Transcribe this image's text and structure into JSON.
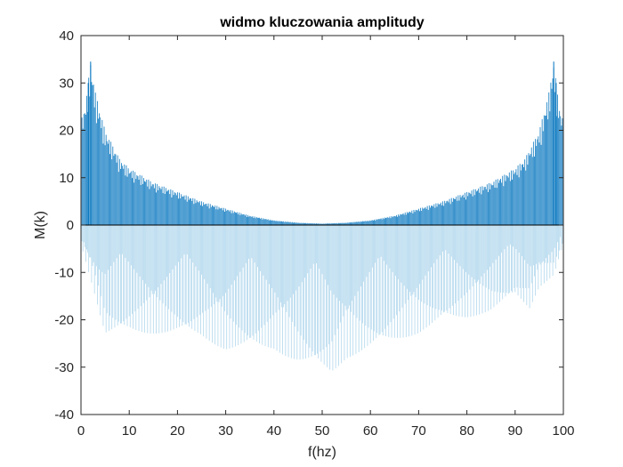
{
  "chart_data": {
    "type": "bar",
    "title": "widmo kluczowania amplitudy",
    "xlabel": "f(hz)",
    "ylabel": "M(k)",
    "xlim": [
      0,
      100
    ],
    "ylim": [
      -40,
      40
    ],
    "xticks": [
      0,
      10,
      20,
      30,
      40,
      50,
      60,
      70,
      80,
      90,
      100
    ],
    "yticks": [
      40,
      30,
      20,
      10,
      0,
      -10,
      -20,
      -30,
      -40
    ],
    "grid": false,
    "legend": "none",
    "series": [
      {
        "style": "stem",
        "envelope_positive": {
          "x": [
            0,
            1,
            2,
            3,
            5,
            8,
            10,
            15,
            20,
            25,
            30,
            35,
            40,
            45,
            50,
            55,
            60,
            65,
            70,
            75,
            80,
            85,
            90,
            92,
            95,
            97,
            98,
            99,
            100
          ],
          "y": [
            22,
            26,
            34.5,
            28,
            20,
            14,
            12,
            9,
            7,
            5,
            3.5,
            2,
            1,
            0.5,
            0.3,
            0.5,
            1,
            2,
            3.5,
            5,
            7,
            9,
            12,
            14,
            20,
            28,
            34.5,
            26,
            22
          ]
        },
        "envelope_negative": {
          "x": [
            0,
            2,
            5,
            10,
            15,
            20,
            25,
            30,
            35,
            40,
            45,
            50,
            52,
            55,
            60,
            65,
            70,
            75,
            80,
            85,
            90,
            93,
            95,
            98,
            100
          ],
          "y": [
            -6,
            -16,
            -32,
            -30,
            -29,
            -28,
            -28,
            -30,
            -29,
            -28,
            -30,
            -31,
            -32,
            -29,
            -28,
            -27,
            -26,
            -24,
            -24,
            -23,
            -20,
            -24,
            -18,
            -15,
            -6
          ]
        }
      }
    ],
    "colors": {
      "primary": "#0072bd",
      "light": "#9ecde8",
      "baseline": "#000000",
      "axes": "#262626"
    }
  }
}
